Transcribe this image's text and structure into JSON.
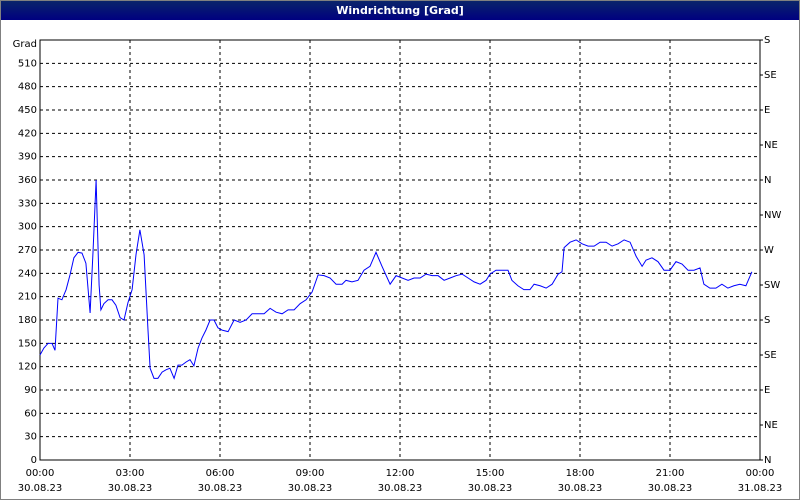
{
  "chart_data": {
    "type": "line",
    "title": "Windrichtung [Grad]",
    "y_label": "Grad",
    "color": "#0000ff",
    "grid": true,
    "xlim": [
      0,
      24
    ],
    "xticks": [
      {
        "value": 0,
        "label": "00:00",
        "date": "30.08.23"
      },
      {
        "value": 3,
        "label": "03:00",
        "date": "30.08.23"
      },
      {
        "value": 6,
        "label": "06:00",
        "date": "30.08.23"
      },
      {
        "value": 9,
        "label": "09:00",
        "date": "30.08.23"
      },
      {
        "value": 12,
        "label": "12:00",
        "date": "30.08.23"
      },
      {
        "value": 15,
        "label": "15:00",
        "date": "30.08.23"
      },
      {
        "value": 18,
        "label": "18:00",
        "date": "30.08.23"
      },
      {
        "value": 21,
        "label": "21:00",
        "date": "30.08.23"
      },
      {
        "value": 24,
        "label": "00:00",
        "date": "31.08.23"
      }
    ],
    "ylim": [
      0,
      540
    ],
    "yticks": [
      0,
      30,
      60,
      90,
      120,
      150,
      180,
      210,
      240,
      270,
      300,
      330,
      360,
      390,
      420,
      450,
      480,
      510
    ],
    "y2lim": [
      0,
      540
    ],
    "y2ticks": [
      {
        "value": 0,
        "label": "N"
      },
      {
        "value": 45,
        "label": "NE"
      },
      {
        "value": 90,
        "label": "E"
      },
      {
        "value": 135,
        "label": "SE"
      },
      {
        "value": 180,
        "label": "S"
      },
      {
        "value": 225,
        "label": "SW"
      },
      {
        "value": 270,
        "label": "W"
      },
      {
        "value": 315,
        "label": "NW"
      },
      {
        "value": 360,
        "label": "N"
      },
      {
        "value": 405,
        "label": "NE"
      },
      {
        "value": 450,
        "label": "E"
      },
      {
        "value": 495,
        "label": "SE"
      },
      {
        "value": 540,
        "label": "S"
      }
    ],
    "x": [
      0,
      0.13,
      0.27,
      0.4,
      0.5,
      0.6,
      0.73,
      0.87,
      1,
      1.13,
      1.27,
      1.4,
      1.53,
      1.67,
      1.77,
      1.87,
      1.97,
      2.03,
      2.13,
      2.27,
      2.4,
      2.53,
      2.67,
      2.8,
      2.93,
      3.07,
      3.2,
      3.33,
      3.47,
      3.6,
      3.67,
      3.8,
      3.93,
      4.07,
      4.2,
      4.33,
      4.47,
      4.6,
      4.73,
      4.87,
      5,
      5.13,
      5.27,
      5.4,
      5.53,
      5.67,
      5.8,
      5.93,
      6.07,
      6.27,
      6.47,
      6.67,
      6.87,
      7.07,
      7.27,
      7.47,
      7.67,
      7.87,
      8.07,
      8.27,
      8.47,
      8.67,
      8.87,
      9.07,
      9.27,
      9.47,
      9.67,
      9.87,
      10.07,
      10.2,
      10.4,
      10.6,
      10.8,
      11,
      11.2,
      11.4,
      11.67,
      11.87,
      12.07,
      12.27,
      12.47,
      12.67,
      12.87,
      13.07,
      13.27,
      13.47,
      13.67,
      13.87,
      14.07,
      14.27,
      14.47,
      14.67,
      14.87,
      15,
      15.2,
      15.4,
      15.6,
      15.73,
      15.93,
      16.13,
      16.33,
      16.47,
      16.67,
      16.87,
      17.07,
      17.27,
      17.4,
      17.47,
      17.67,
      17.87,
      18.07,
      18.27,
      18.47,
      18.67,
      18.87,
      19.07,
      19.27,
      19.47,
      19.67,
      19.87,
      20.07,
      20.2,
      20.4,
      20.6,
      20.8,
      21,
      21.2,
      21.4,
      21.6,
      21.8,
      22,
      22.13,
      22.33,
      22.53,
      22.73,
      22.93,
      23.13,
      23.33,
      23.53,
      23.73
    ],
    "values": [
      135,
      144,
      150,
      150,
      141,
      208,
      206,
      219,
      238,
      260,
      267,
      266,
      253,
      189,
      270,
      360,
      225,
      193,
      201,
      206,
      206,
      199,
      183,
      180,
      202,
      219,
      264,
      296,
      264,
      167,
      118,
      105,
      105,
      113,
      116,
      118,
      105,
      122,
      122,
      126,
      129,
      121,
      144,
      157,
      167,
      180,
      180,
      170,
      167,
      165,
      180,
      177,
      180,
      188,
      188,
      188,
      195,
      190,
      188,
      193,
      193,
      201,
      206,
      216,
      238,
      237,
      234,
      226,
      226,
      231,
      229,
      231,
      244,
      249,
      267,
      249,
      226,
      237,
      234,
      231,
      234,
      234,
      239,
      237,
      237,
      231,
      234,
      237,
      239,
      234,
      229,
      226,
      231,
      239,
      244,
      244,
      244,
      231,
      224,
      219,
      219,
      226,
      224,
      221,
      226,
      239,
      242,
      273,
      280,
      283,
      278,
      275,
      275,
      280,
      280,
      275,
      278,
      283,
      280,
      262,
      249,
      257,
      260,
      255,
      244,
      244,
      255,
      252,
      244,
      244,
      247,
      226,
      221,
      221,
      226,
      221,
      224,
      226,
      224,
      242
    ]
  }
}
